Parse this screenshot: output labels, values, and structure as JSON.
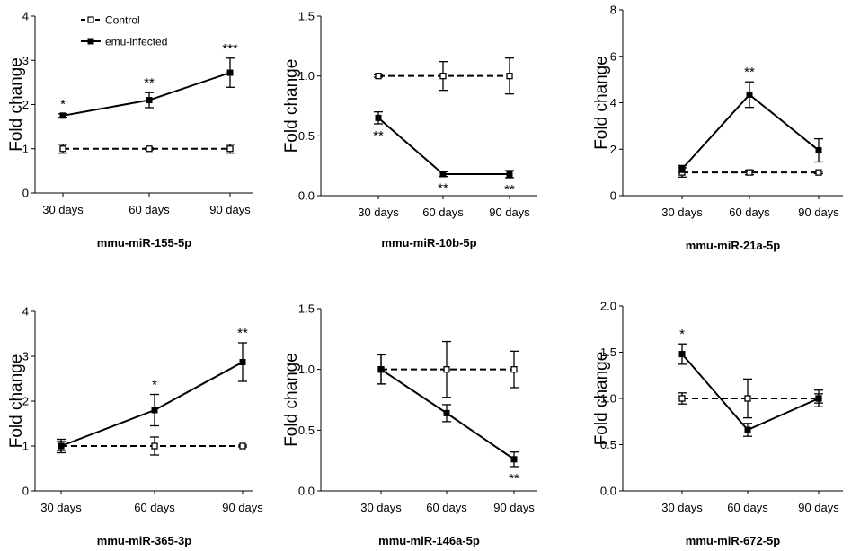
{
  "chart_data": [
    {
      "type": "line",
      "title": "mmu-miR-155-5p",
      "xlabel": "",
      "ylabel": "Fold change",
      "categories": [
        "30 days",
        "60 days",
        "90 days"
      ],
      "ylim": [
        0,
        4
      ],
      "yticks": [
        "0",
        "1",
        "2",
        "3",
        "4"
      ],
      "legend": {
        "position": "top-left",
        "entries": [
          "Control",
          "emu-infected"
        ]
      },
      "series": [
        {
          "name": "Control",
          "style": "dashed",
          "marker": "open-square",
          "values": [
            1.0,
            1.0,
            1.0
          ],
          "errors": [
            0.1,
            0.02,
            0.1
          ]
        },
        {
          "name": "emu-infected",
          "style": "solid",
          "marker": "filled-square",
          "values": [
            1.75,
            2.1,
            2.72
          ],
          "errors": [
            0.04,
            0.17,
            0.33
          ]
        }
      ],
      "annotations": [
        {
          "category": "30 days",
          "text": "*"
        },
        {
          "category": "60 days",
          "text": "**"
        },
        {
          "category": "90 days",
          "text": "***"
        }
      ]
    },
    {
      "type": "line",
      "title": "mmu-miR-10b-5p",
      "xlabel": "",
      "ylabel": "Fold change",
      "categories": [
        "30 days",
        "60 days",
        "90 days"
      ],
      "ylim": [
        0,
        1.5
      ],
      "yticks": [
        "0.0",
        "0.5",
        "1.0",
        "1.5"
      ],
      "series": [
        {
          "name": "Control",
          "style": "dashed",
          "marker": "open-square",
          "values": [
            1.0,
            1.0,
            1.0
          ],
          "errors": [
            0.01,
            0.12,
            0.15
          ]
        },
        {
          "name": "emu-infected",
          "style": "solid",
          "marker": "filled-square",
          "values": [
            0.65,
            0.18,
            0.18
          ],
          "errors": [
            0.05,
            0.02,
            0.03
          ]
        }
      ],
      "annotations": [
        {
          "category": "30 days",
          "text": "**"
        },
        {
          "category": "60 days",
          "text": "**"
        },
        {
          "category": "90 days",
          "text": "**"
        }
      ]
    },
    {
      "type": "line",
      "title": "mmu-miR-21a-5p",
      "xlabel": "",
      "ylabel": "Fold change",
      "categories": [
        "30 days",
        "60 days",
        "90 days"
      ],
      "ylim": [
        0,
        8
      ],
      "yticks": [
        "0",
        "2",
        "4",
        "6",
        "8"
      ],
      "series": [
        {
          "name": "Control",
          "style": "dashed",
          "marker": "open-square",
          "values": [
            1.0,
            1.0,
            1.0
          ],
          "errors": [
            0.2,
            0.1,
            0.05
          ]
        },
        {
          "name": "emu-infected",
          "style": "solid",
          "marker": "filled-square",
          "values": [
            1.15,
            4.35,
            1.95
          ],
          "errors": [
            0.15,
            0.55,
            0.5
          ]
        }
      ],
      "annotations": [
        {
          "category": "60 days",
          "text": "**"
        }
      ]
    },
    {
      "type": "line",
      "title": "mmu-miR-365-3p",
      "xlabel": "",
      "ylabel": "Fold change",
      "categories": [
        "30 days",
        "60 days",
        "90 days"
      ],
      "ylim": [
        0,
        4
      ],
      "yticks": [
        "0",
        "1",
        "2",
        "3",
        "4"
      ],
      "series": [
        {
          "name": "Control",
          "style": "dashed",
          "marker": "open-square",
          "values": [
            1.0,
            1.0,
            1.0
          ],
          "errors": [
            0.15,
            0.2,
            0.02
          ]
        },
        {
          "name": "emu-infected",
          "style": "solid",
          "marker": "filled-square",
          "values": [
            1.0,
            1.8,
            2.87
          ],
          "errors": [
            0.1,
            0.35,
            0.43
          ]
        }
      ],
      "annotations": [
        {
          "category": "60 days",
          "text": "*"
        },
        {
          "category": "90 days",
          "text": "**"
        }
      ]
    },
    {
      "type": "line",
      "title": "mmu-miR-146a-5p",
      "xlabel": "",
      "ylabel": "Fold change",
      "categories": [
        "30 days",
        "60 days",
        "90 days"
      ],
      "ylim": [
        0,
        1.5
      ],
      "yticks": [
        "0.0",
        "0.5",
        "1.0",
        "1.5"
      ],
      "series": [
        {
          "name": "Control",
          "style": "dashed",
          "marker": "open-square",
          "values": [
            1.0,
            1.0,
            1.0
          ],
          "errors": [
            0.12,
            0.23,
            0.15
          ]
        },
        {
          "name": "emu-infected",
          "style": "solid",
          "marker": "filled-square",
          "values": [
            1.0,
            0.64,
            0.26
          ],
          "errors": [
            0.12,
            0.07,
            0.06
          ]
        }
      ],
      "annotations": [
        {
          "category": "90 days",
          "text": "**"
        }
      ]
    },
    {
      "type": "line",
      "title": "mmu-miR-672-5p",
      "xlabel": "",
      "ylabel": "Fold change",
      "categories": [
        "30 days",
        "60 days",
        "90 days"
      ],
      "ylim": [
        0,
        2.0
      ],
      "yticks": [
        "0.0",
        "0.5",
        "1.0",
        "1.5",
        "2.0"
      ],
      "series": [
        {
          "name": "Control",
          "style": "dashed",
          "marker": "open-square",
          "values": [
            1.0,
            1.0,
            1.0
          ],
          "errors": [
            0.06,
            0.21,
            0.05
          ]
        },
        {
          "name": "emu-infected",
          "style": "solid",
          "marker": "filled-square",
          "values": [
            1.48,
            0.66,
            1.0
          ],
          "errors": [
            0.11,
            0.07,
            0.09
          ]
        }
      ],
      "annotations": [
        {
          "category": "30 days",
          "text": "*"
        }
      ]
    }
  ]
}
